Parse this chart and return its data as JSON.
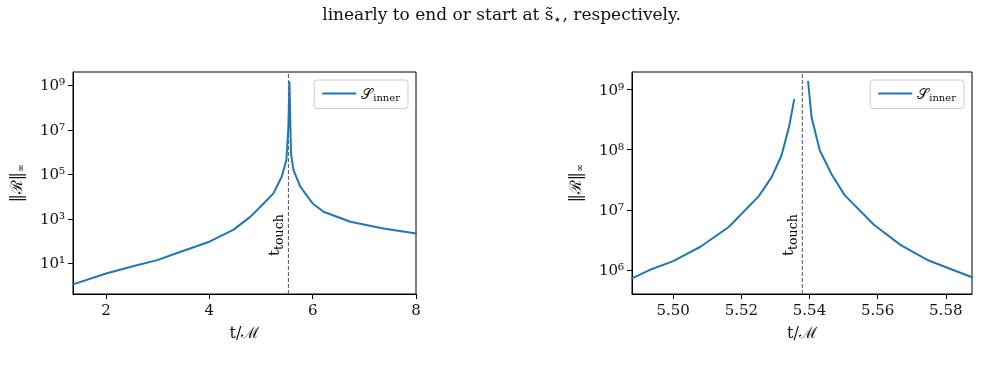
{
  "chart_data": [
    {
      "type": "line",
      "xlabel": "t/ℳ",
      "ylabel": "‖ℛ‖$_{∞}$",
      "annotations": [
        "linearly to end or start at s̃$_{⋆}$, respectively."
      ],
      "log": "y",
      "xlim": [
        1.36,
        8
      ],
      "xticks": [
        2,
        4,
        6,
        8
      ],
      "ylim": [
        0.42,
        4000000000
      ],
      "yticks": [
        {
          "value": 10,
          "label": "10¹"
        },
        {
          "value": 1000,
          "label": "10³"
        },
        {
          "value": 100000,
          "label": "10⁵"
        },
        {
          "value": 10000000,
          "label": "10⁷"
        },
        {
          "value": 1000000000,
          "label": "10⁹"
        }
      ],
      "grid": false,
      "legend": "top right",
      "marker": "none",
      "line_style": "solid",
      "ref_lines": [
        {
          "axis": "x",
          "value": 5.53,
          "label": "t$_{touch}$",
          "color": "#555555",
          "line_style": "dashed"
        }
      ],
      "series": [
        {
          "name": "𝒮$_{inner}$",
          "color": "#1f77b4",
          "x": [
            1.36,
            2,
            2.54,
            2.99,
            3.5,
            4,
            4.47,
            4.79,
            5.05,
            5.24,
            5.4,
            5.49,
            5.53,
            5.55,
            5.58,
            5.63,
            5.76,
            6.0,
            6.21,
            6.73,
            7.37,
            8
          ],
          "values": [
            1.14,
            3.5,
            7.6,
            14,
            37,
            94,
            330,
            1230,
            4900,
            14000,
            78000,
            430000,
            13000000,
            1400000000,
            850000,
            150000,
            28000,
            4900,
            2100,
            740,
            370,
            220
          ]
        }
      ]
    },
    {
      "type": "line",
      "xlabel": "t/ℳ",
      "ylabel": "‖ℛ‖$_{∞}$",
      "log": "y",
      "xlim": [
        5.4879,
        5.5877
      ],
      "xticks": [
        {
          "value": 5.5,
          "label": "5.50"
        },
        {
          "value": 5.52,
          "label": "5.52"
        },
        {
          "value": 5.54,
          "label": "5.54"
        },
        {
          "value": 5.56,
          "label": "5.56"
        },
        {
          "value": 5.58,
          "label": "5.58"
        }
      ],
      "ylim": [
        400000,
        1960000000
      ],
      "yticks": [
        {
          "value": 1000000,
          "label": "10⁶"
        },
        {
          "value": 10000000,
          "label": "10⁷"
        },
        {
          "value": 100000000,
          "label": "10⁸"
        },
        {
          "value": 1000000000,
          "label": "10⁹"
        }
      ],
      "grid": false,
      "legend": "top right",
      "marker": "none",
      "line_style": "solid",
      "ref_lines": [
        {
          "axis": "x",
          "value": 5.5379,
          "label": "t$_{touch}$",
          "color": "#555555",
          "line_style": "dashed"
        }
      ],
      "series": [
        {
          "name": "𝒮$_{inner}$",
          "color": "#1f77b4",
          "x": [
            5.4879,
            5.493,
            5.5,
            5.508,
            5.5163,
            5.525,
            5.5289,
            5.5318,
            5.534,
            5.5355,
            5.5375,
            5.5396,
            5.5406,
            5.543,
            5.5464,
            5.5503,
            5.559,
            5.5668,
            5.5746,
            5.5877
          ],
          "values": [
            730000,
            1000000,
            1410000,
            2440000,
            5200000,
            16600000,
            35000000,
            81000000,
            240000000,
            680000000,
            null,
            1350000000,
            350000000,
            98000000,
            40000000,
            17600000,
            5600000,
            2600000,
            1470000,
            760000
          ]
        }
      ]
    }
  ]
}
